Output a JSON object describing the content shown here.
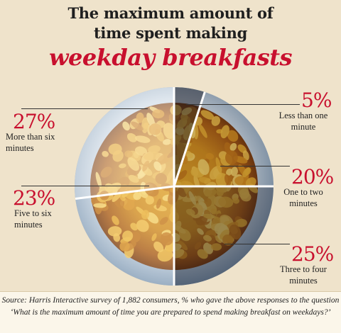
{
  "chart_data": {
    "type": "pie",
    "title_lines": [
      "The maximum amount of",
      "time spent making"
    ],
    "title_accent": "weekday breakfasts",
    "slices": [
      {
        "pct": "5%",
        "value": 5,
        "label_lines": [
          "Less than one",
          "minute"
        ]
      },
      {
        "pct": "20%",
        "value": 20,
        "label_lines": [
          "One to two",
          "minutes"
        ]
      },
      {
        "pct": "25%",
        "value": 25,
        "label_lines": [
          "Three to four",
          "minutes"
        ]
      },
      {
        "pct": "23%",
        "value": 23,
        "label_lines": [
          "Five to six",
          "minutes"
        ]
      },
      {
        "pct": "27%",
        "value": 27,
        "label_lines": [
          "More than six",
          "minutes"
        ]
      }
    ],
    "source_lines": [
      "Source: Harris Interactive survey of 1,882 consumers, % who gave the above responses to the question",
      "‘What is the maximum amount of time you are prepared to spend making breakfast on weekdays?’"
    ]
  },
  "colors": {
    "background": "#efe3cb",
    "accent": "#c8102e",
    "plate_rim": "#8aa6bf",
    "divider": "#ffffff"
  }
}
